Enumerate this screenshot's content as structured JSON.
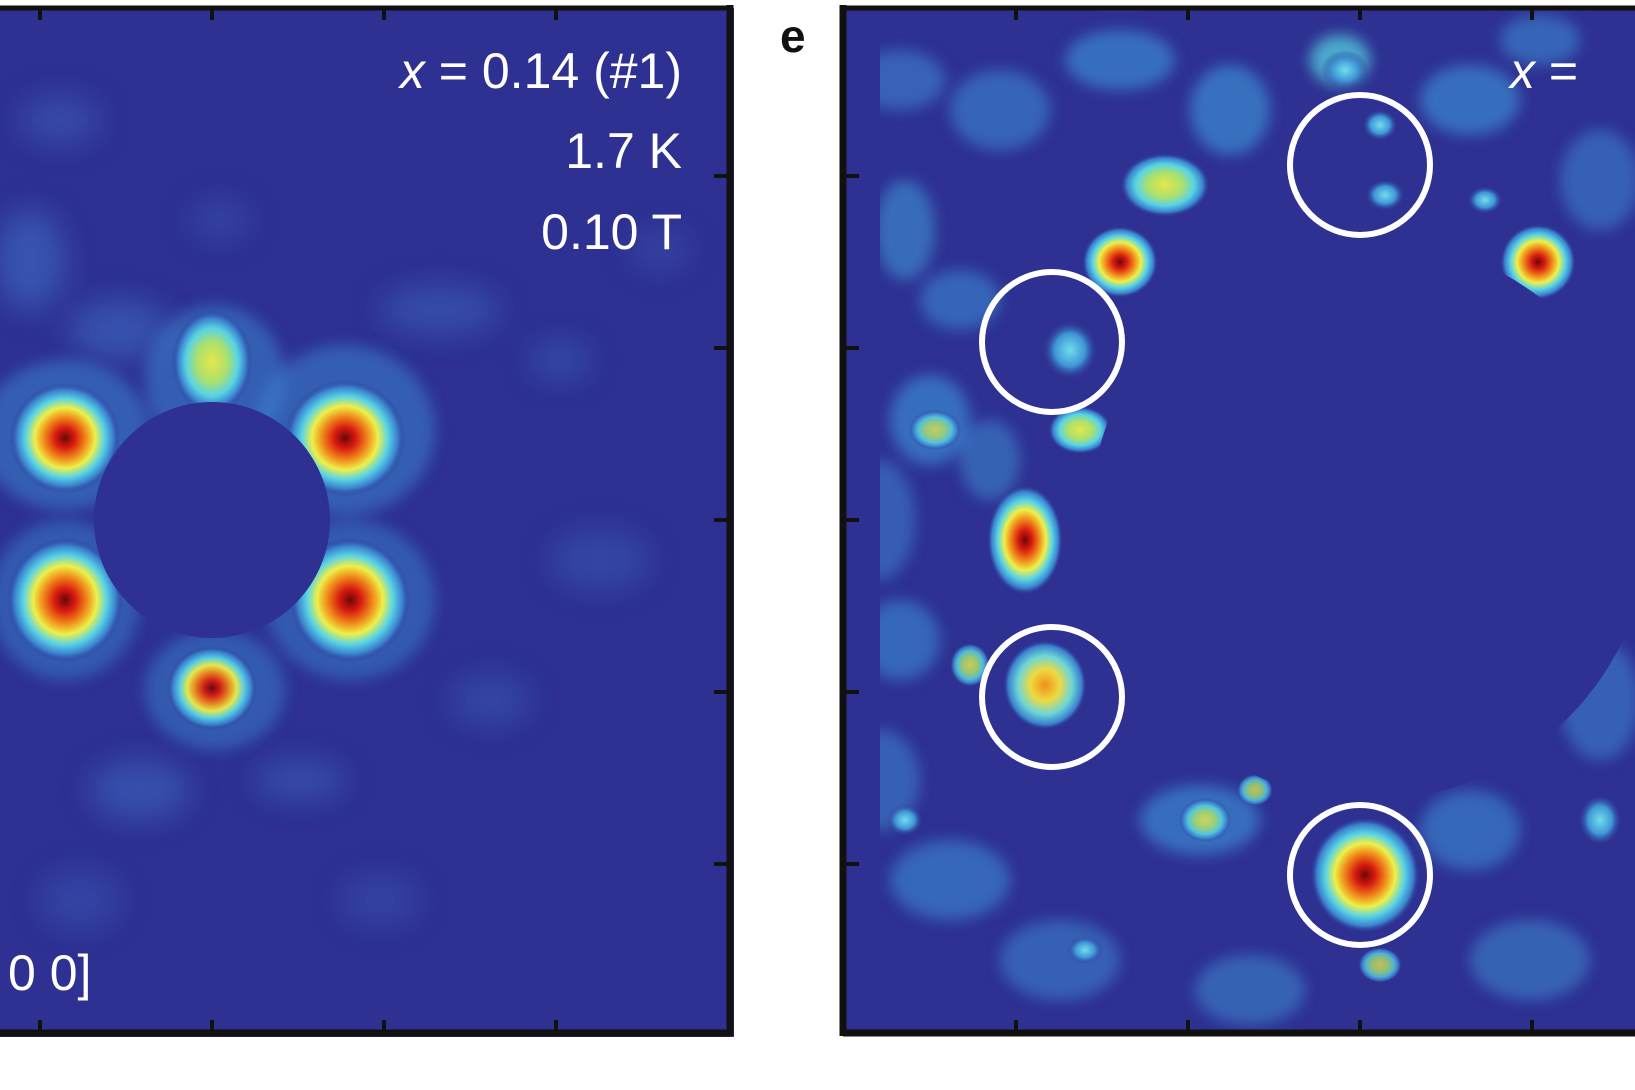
{
  "chart_data": [
    {
      "type": "heatmap",
      "panel": "",
      "annotations": {
        "composition_var": "x",
        "composition_rest": " = 0.14 (#1)",
        "temperature": "1.7 K",
        "field": "0.10 T",
        "direction_fragment": "0 0]"
      },
      "colormap": [
        "#2a2f8a",
        "#3a8bd0",
        "#4fd0e8",
        "#f2ef4a",
        "#f0a020",
        "#e02010",
        "#7a0a0a"
      ],
      "background_color": "#2e3192",
      "spots": [
        {
          "label": "upper",
          "intensity": 0.72
        },
        {
          "label": "upper-left",
          "intensity": 0.88
        },
        {
          "label": "upper-right",
          "intensity": 0.95
        },
        {
          "label": "lower-left",
          "intensity": 0.97
        },
        {
          "label": "lower-right",
          "intensity": 0.9
        },
        {
          "label": "lower",
          "intensity": 0.82
        }
      ],
      "ticks_x_count": 4,
      "ticks_y_count": 5
    },
    {
      "type": "heatmap",
      "panel": "e",
      "annotations": {
        "composition_var": "x",
        "composition_rest": " ="
      },
      "colormap": [
        "#2a2f8a",
        "#3a8bd0",
        "#4fd0e8",
        "#f2ef4a",
        "#f0a020",
        "#e02010",
        "#7a0a0a"
      ],
      "background_color": "#2e3192",
      "circled_regions": 4,
      "spots": [
        {
          "label": "top-right-edge",
          "intensity": 0.88
        },
        {
          "label": "upper-left-1",
          "intensity": 0.86
        },
        {
          "label": "upper-left-2",
          "intensity": 0.55
        },
        {
          "label": "left-middle",
          "intensity": 0.92
        },
        {
          "label": "left-lower-circled",
          "intensity": 0.8
        },
        {
          "label": "bottom-circled",
          "intensity": 1.0
        }
      ],
      "ticks_x_count": 4,
      "ticks_y_count": 5
    }
  ]
}
